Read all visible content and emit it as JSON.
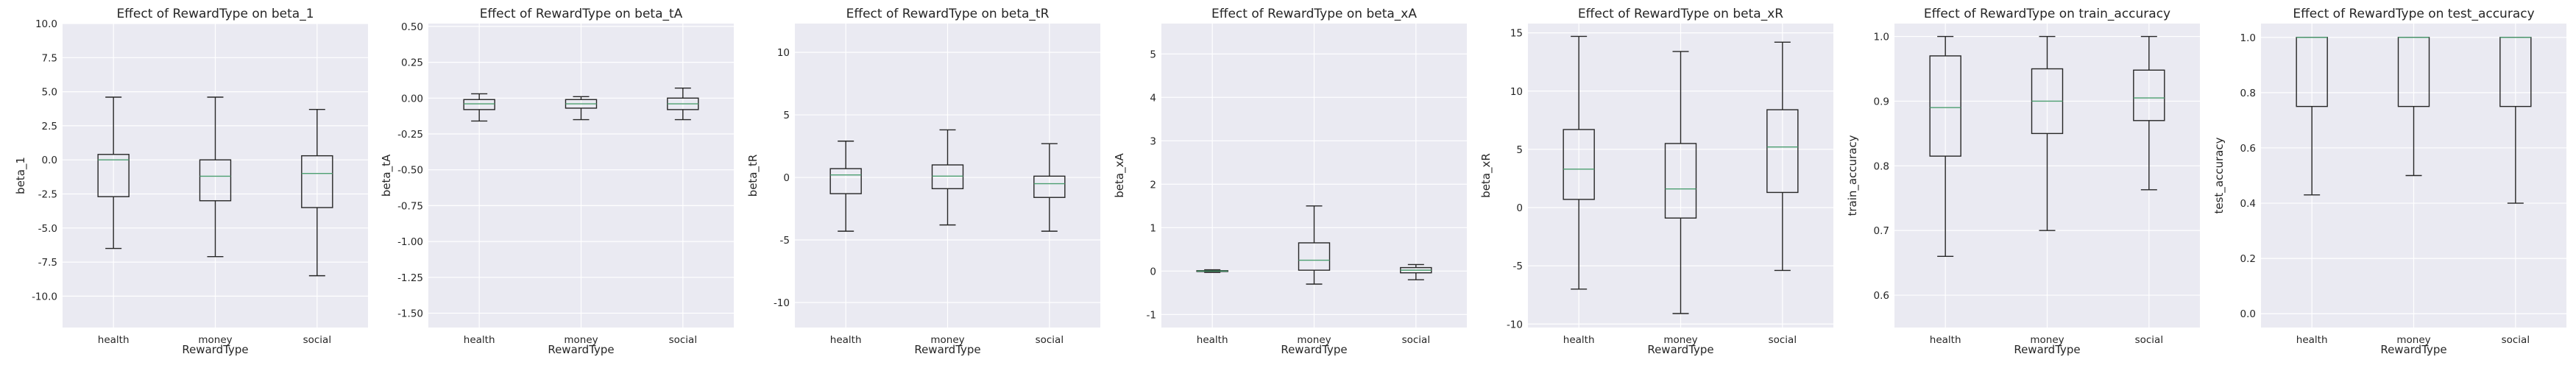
{
  "chart_data": [
    {
      "type": "boxplot",
      "title": "Effect of RewardType on beta_1",
      "xlabel": "RewardType",
      "ylabel": "beta_1",
      "categories": [
        "health",
        "money",
        "social"
      ],
      "ylim": [
        -12.3,
        10.0
      ],
      "yticks": [
        10.0,
        7.5,
        5.0,
        2.5,
        0.0,
        -2.5,
        -5.0,
        -7.5,
        -10.0
      ],
      "ytick_labels": [
        "10.0",
        "7.5",
        "5.0",
        "2.5",
        "0.0",
        "-2.5",
        "-5.0",
        "-7.5",
        "-10.0"
      ],
      "boxes": [
        {
          "whislo": -6.5,
          "q1": -2.7,
          "med": 0.0,
          "q3": 0.4,
          "whishi": 4.6
        },
        {
          "whislo": -7.1,
          "q1": -3.0,
          "med": -1.2,
          "q3": 0.0,
          "whishi": 4.6
        },
        {
          "whislo": -8.5,
          "q1": -3.5,
          "med": -1.0,
          "q3": 0.3,
          "whishi": 3.7
        }
      ]
    },
    {
      "type": "boxplot",
      "title": "Effect of RewardType on beta_tA",
      "xlabel": "RewardType",
      "ylabel": "beta_tA",
      "categories": [
        "health",
        "money",
        "social"
      ],
      "ylim": [
        -1.6,
        0.52
      ],
      "yticks": [
        0.5,
        0.25,
        0.0,
        -0.25,
        -0.5,
        -0.75,
        -1.0,
        -1.25,
        -1.5
      ],
      "ytick_labels": [
        "0.50",
        "0.25",
        "0.00",
        "-0.25",
        "-0.50",
        "-0.75",
        "-1.00",
        "-1.25",
        "-1.50"
      ],
      "boxes": [
        {
          "whislo": -0.16,
          "q1": -0.08,
          "med": -0.04,
          "q3": -0.01,
          "whishi": 0.03
        },
        {
          "whislo": -0.15,
          "q1": -0.07,
          "med": -0.04,
          "q3": -0.01,
          "whishi": 0.01
        },
        {
          "whislo": -0.15,
          "q1": -0.08,
          "med": -0.04,
          "q3": 0.0,
          "whishi": 0.07
        }
      ]
    },
    {
      "type": "boxplot",
      "title": "Effect of RewardType on beta_tR",
      "xlabel": "RewardType",
      "ylabel": "beta_tR",
      "categories": [
        "health",
        "money",
        "social"
      ],
      "ylim": [
        -12.0,
        12.3
      ],
      "yticks": [
        10,
        5,
        0,
        -5,
        -10
      ],
      "ytick_labels": [
        "10",
        "5",
        "0",
        "-5",
        "-10"
      ],
      "boxes": [
        {
          "whislo": -4.3,
          "q1": -1.3,
          "med": 0.2,
          "q3": 0.7,
          "whishi": 2.9
        },
        {
          "whislo": -3.8,
          "q1": -0.9,
          "med": 0.1,
          "q3": 1.0,
          "whishi": 3.8
        },
        {
          "whislo": -4.3,
          "q1": -1.6,
          "med": -0.5,
          "q3": 0.1,
          "whishi": 2.7
        }
      ]
    },
    {
      "type": "boxplot",
      "title": "Effect of RewardType on beta_xA",
      "xlabel": "RewardType",
      "ylabel": "beta_xA",
      "categories": [
        "health",
        "money",
        "social"
      ],
      "ylim": [
        -1.3,
        5.7
      ],
      "yticks": [
        5,
        4,
        3,
        2,
        1,
        0,
        -1
      ],
      "ytick_labels": [
        "5",
        "4",
        "3",
        "2",
        "1",
        "0",
        "-1"
      ],
      "boxes": [
        {
          "whislo": -0.03,
          "q1": -0.01,
          "med": 0.0,
          "q3": 0.01,
          "whishi": 0.03
        },
        {
          "whislo": -0.3,
          "q1": 0.02,
          "med": 0.25,
          "q3": 0.65,
          "whishi": 1.5
        },
        {
          "whislo": -0.2,
          "q1": -0.04,
          "med": 0.02,
          "q3": 0.08,
          "whishi": 0.15
        }
      ]
    },
    {
      "type": "boxplot",
      "title": "Effect of RewardType on beta_xR",
      "xlabel": "RewardType",
      "ylabel": "beta_xR",
      "categories": [
        "health",
        "money",
        "social"
      ],
      "ylim": [
        -10.3,
        15.8
      ],
      "yticks": [
        15,
        10,
        5,
        0,
        -5,
        -10
      ],
      "ytick_labels": [
        "15",
        "10",
        "5",
        "0",
        "-5",
        "-10"
      ],
      "boxes": [
        {
          "whislo": -7.0,
          "q1": 0.7,
          "med": 3.3,
          "q3": 6.7,
          "whishi": 14.7
        },
        {
          "whislo": -9.1,
          "q1": -0.9,
          "med": 1.6,
          "q3": 5.5,
          "whishi": 13.4
        },
        {
          "whislo": -5.4,
          "q1": 1.3,
          "med": 5.2,
          "q3": 8.4,
          "whishi": 14.2
        }
      ]
    },
    {
      "type": "boxplot",
      "title": "Effect of RewardType on train_accuracy",
      "xlabel": "RewardType",
      "ylabel": "train_accuracy",
      "categories": [
        "health",
        "money",
        "social"
      ],
      "ylim": [
        0.55,
        1.02
      ],
      "yticks": [
        1.0,
        0.9,
        0.8,
        0.7,
        0.6
      ],
      "ytick_labels": [
        "1.0",
        "0.9",
        "0.8",
        "0.7",
        "0.6"
      ],
      "boxes": [
        {
          "whislo": 0.66,
          "q1": 0.815,
          "med": 0.89,
          "q3": 0.97,
          "whishi": 1.0
        },
        {
          "whislo": 0.7,
          "q1": 0.85,
          "med": 0.9,
          "q3": 0.95,
          "whishi": 1.0
        },
        {
          "whislo": 0.763,
          "q1": 0.87,
          "med": 0.905,
          "q3": 0.948,
          "whishi": 1.0
        }
      ]
    },
    {
      "type": "boxplot",
      "title": "Effect of RewardType on test_accuracy",
      "xlabel": "RewardType",
      "ylabel": "test_accuracy",
      "categories": [
        "health",
        "money",
        "social"
      ],
      "ylim": [
        -0.05,
        1.05
      ],
      "yticks": [
        1.0,
        0.8,
        0.6,
        0.4,
        0.2,
        0.0
      ],
      "ytick_labels": [
        "1.0",
        "0.8",
        "0.6",
        "0.4",
        "0.2",
        "0.0"
      ],
      "boxes": [
        {
          "whislo": 0.43,
          "q1": 0.75,
          "med": 1.0,
          "q3": 1.0,
          "whishi": 1.0
        },
        {
          "whislo": 0.5,
          "q1": 0.75,
          "med": 1.0,
          "q3": 1.0,
          "whishi": 1.0
        },
        {
          "whislo": 0.4,
          "q1": 0.75,
          "med": 1.0,
          "q3": 1.0,
          "whishi": 1.0
        }
      ]
    }
  ]
}
